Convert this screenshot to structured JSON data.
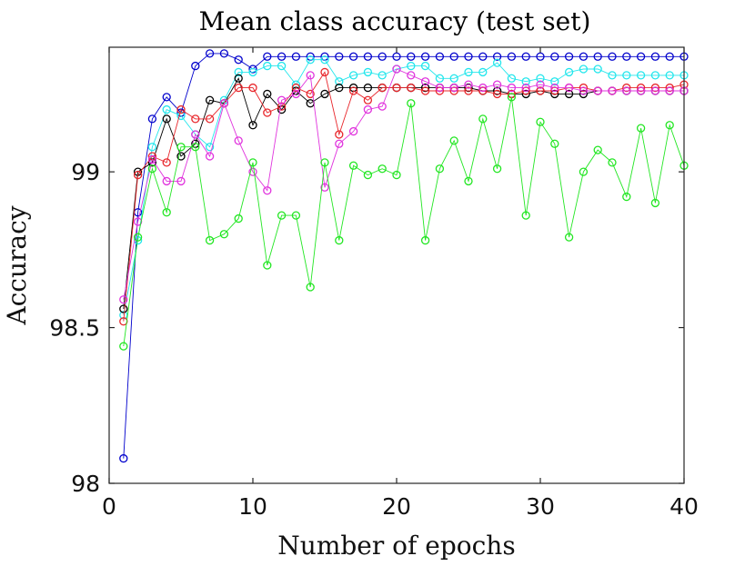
{
  "chart_data": {
    "type": "line",
    "title": "Mean class accuracy (test set)",
    "xlabel": "Number of epochs",
    "ylabel": "Accuracy",
    "xlim": [
      0,
      40
    ],
    "ylim": [
      98,
      99.4
    ],
    "xticks": [
      0,
      10,
      20,
      30,
      40
    ],
    "xtick_labels": [
      "0",
      "10",
      "20",
      "30",
      "40"
    ],
    "yticks": [
      98,
      98.5,
      99
    ],
    "ytick_labels": [
      "98",
      "98.5",
      "99"
    ],
    "grid": false,
    "x": [
      1,
      2,
      3,
      4,
      5,
      6,
      7,
      8,
      9,
      10,
      11,
      12,
      13,
      14,
      15,
      16,
      17,
      18,
      19,
      20,
      21,
      22,
      23,
      24,
      25,
      26,
      27,
      28,
      29,
      30,
      31,
      32,
      33,
      34,
      35,
      36,
      37,
      38,
      39,
      40
    ],
    "series": [
      {
        "name": "blue",
        "color": "#0000cc",
        "values": [
          98.08,
          98.87,
          99.17,
          99.24,
          99.19,
          99.34,
          99.38,
          99.38,
          99.36,
          99.33,
          99.37,
          99.37,
          99.37,
          99.37,
          99.37,
          99.37,
          99.37,
          99.37,
          99.37,
          99.37,
          99.37,
          99.37,
          99.37,
          99.37,
          99.37,
          99.37,
          99.37,
          99.37,
          99.37,
          99.37,
          99.37,
          99.37,
          99.37,
          99.37,
          99.37,
          99.37,
          99.37,
          99.37,
          99.37,
          99.37
        ]
      },
      {
        "name": "cyan",
        "color": "#22e6ec",
        "values": [
          98.54,
          98.78,
          99.08,
          99.2,
          99.18,
          99.12,
          99.08,
          99.23,
          99.32,
          99.32,
          99.34,
          99.34,
          99.28,
          99.36,
          99.36,
          99.29,
          99.31,
          99.32,
          99.31,
          99.33,
          99.34,
          99.34,
          99.3,
          99.3,
          99.32,
          99.32,
          99.35,
          99.3,
          99.29,
          99.3,
          99.29,
          99.32,
          99.33,
          99.33,
          99.31,
          99.31,
          99.31,
          99.31,
          99.31,
          99.31
        ]
      },
      {
        "name": "black",
        "color": "#000000",
        "values": [
          98.56,
          99.0,
          99.03,
          99.17,
          99.05,
          99.09,
          99.23,
          99.22,
          99.3,
          99.15,
          99.25,
          99.2,
          99.26,
          99.22,
          99.25,
          99.27,
          99.27,
          99.27,
          99.27,
          99.27,
          99.27,
          99.27,
          99.27,
          99.27,
          99.27,
          99.26,
          99.26,
          99.25,
          99.25,
          99.26,
          99.25,
          99.25,
          99.25,
          99.26,
          99.26,
          99.26,
          99.26,
          99.26,
          99.26,
          99.26
        ]
      },
      {
        "name": "red",
        "color": "#e8262b",
        "values": [
          98.52,
          98.99,
          99.05,
          99.03,
          99.2,
          99.17,
          99.17,
          99.22,
          99.27,
          99.27,
          99.19,
          99.21,
          99.27,
          99.25,
          99.32,
          99.12,
          99.26,
          99.23,
          99.27,
          99.27,
          99.27,
          99.26,
          99.26,
          99.26,
          99.26,
          99.26,
          99.25,
          99.25,
          99.26,
          99.26,
          99.26,
          99.27,
          99.27,
          99.26,
          99.26,
          99.27,
          99.27,
          99.27,
          99.27,
          99.28
        ]
      },
      {
        "name": "magenta",
        "color": "#e033dd",
        "values": [
          98.59,
          98.84,
          99.04,
          98.97,
          98.97,
          99.12,
          99.05,
          99.22,
          99.1,
          99.0,
          98.94,
          99.23,
          99.25,
          99.31,
          98.95,
          99.09,
          99.13,
          99.2,
          99.21,
          99.33,
          99.31,
          99.29,
          99.27,
          99.27,
          99.28,
          99.27,
          99.28,
          99.27,
          99.27,
          99.28,
          99.27,
          99.27,
          99.26,
          99.26,
          99.26,
          99.26,
          99.26,
          99.26,
          99.26,
          99.26
        ]
      },
      {
        "name": "green",
        "color": "#22e622",
        "values": [
          98.44,
          98.79,
          99.01,
          98.87,
          99.08,
          99.08,
          98.78,
          98.8,
          98.85,
          99.03,
          98.7,
          98.86,
          98.86,
          98.63,
          99.03,
          98.78,
          99.02,
          98.99,
          99.01,
          98.99,
          99.22,
          98.78,
          99.01,
          99.1,
          98.97,
          99.17,
          99.01,
          99.24,
          98.86,
          99.16,
          99.09,
          98.79,
          99.0,
          99.07,
          99.03,
          98.92,
          99.14,
          98.9,
          99.15,
          99.02
        ]
      }
    ]
  }
}
